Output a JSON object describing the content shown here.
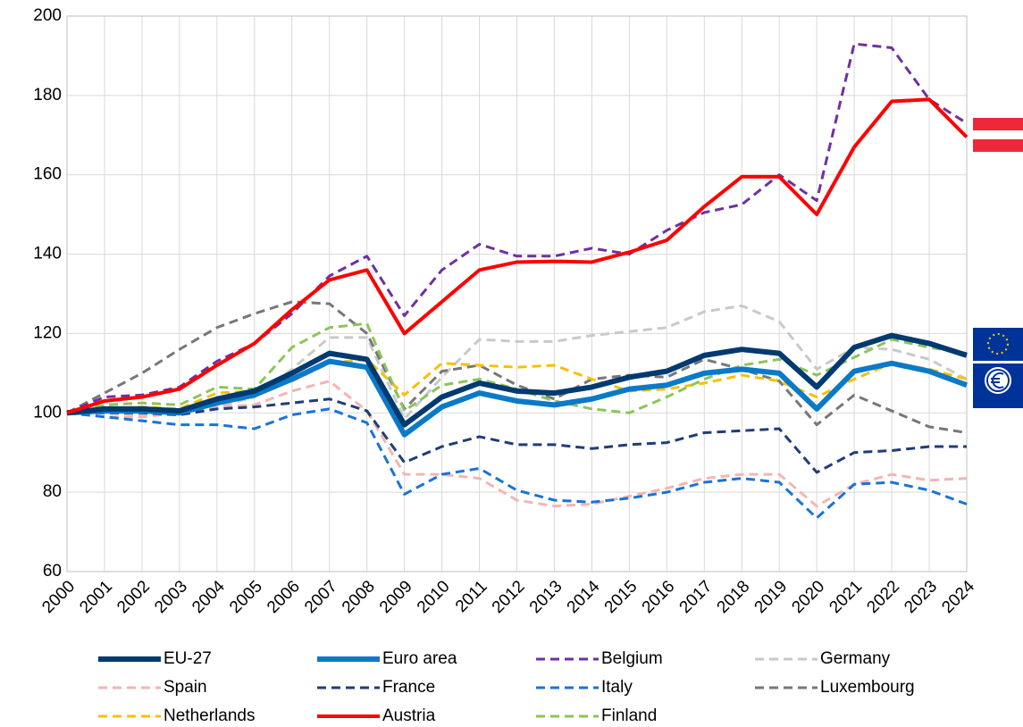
{
  "chart_data": {
    "type": "line",
    "categories": [
      "2000",
      "2001",
      "2002",
      "2003",
      "2004",
      "2005",
      "2006",
      "2007",
      "2008",
      "2009",
      "2010",
      "2011",
      "2012",
      "2013",
      "2014",
      "2015",
      "2016",
      "2017",
      "2018",
      "2019",
      "2020",
      "2021",
      "2022",
      "2023",
      "2024"
    ],
    "ylim": [
      60,
      200
    ],
    "yticks": [
      60,
      80,
      100,
      120,
      140,
      160,
      180,
      200
    ],
    "grid": true,
    "series": [
      {
        "name": "EU-27",
        "color": "#003a70",
        "style": "solid",
        "values": [
          100,
          101,
          101,
          100.5,
          103.5,
          105.5,
          110,
          115,
          113.5,
          97,
          104,
          107.5,
          105.5,
          105,
          106.5,
          109,
          110.5,
          114.5,
          116,
          115,
          106.5,
          116.5,
          119.5,
          117.5,
          114.5
        ]
      },
      {
        "name": "Euro area",
        "color": "#0a7ac8",
        "style": "solid",
        "values": [
          100,
          100.5,
          100.5,
          100,
          102.5,
          104.5,
          108.5,
          113,
          111.5,
          94.5,
          101.5,
          105,
          103,
          102,
          103.5,
          106,
          107,
          110,
          111,
          110,
          101,
          110.5,
          112.5,
          110.5,
          107
        ]
      },
      {
        "name": "Belgium",
        "color": "#7030a0",
        "style": "dashed",
        "values": [
          100,
          104,
          104.5,
          106.5,
          113,
          117.5,
          125,
          134.5,
          139.5,
          124.5,
          136,
          142.5,
          139.5,
          139.5,
          141.5,
          140,
          146,
          150.5,
          152.5,
          160,
          153.5,
          193,
          192,
          179,
          173
        ]
      },
      {
        "name": "Germany",
        "color": "#c9c9c9",
        "style": "dashed",
        "values": [
          100,
          100,
          99.5,
          99.5,
          101.5,
          104,
          111,
          119,
          119,
          98.5,
          109,
          118.5,
          118,
          118,
          119.5,
          120.5,
          121.5,
          125.5,
          127,
          123,
          111,
          116.5,
          116,
          113.5,
          108.5
        ]
      },
      {
        "name": "Spain",
        "color": "#f4b5b0",
        "style": "dashed",
        "values": [
          100,
          99,
          99,
          100,
          101.5,
          102,
          105.5,
          108,
          100.5,
          84.5,
          84.5,
          83.5,
          78,
          76.5,
          77,
          79,
          81,
          83.5,
          84.5,
          84.5,
          76.5,
          82,
          84.5,
          83,
          83.5
        ]
      },
      {
        "name": "France",
        "color": "#1f3d78",
        "style": "dashed",
        "values": [
          100,
          100,
          100,
          99.5,
          101,
          101.5,
          102.5,
          103.5,
          100.5,
          87.5,
          91.5,
          94,
          92,
          92,
          91,
          92,
          92.5,
          95,
          95.5,
          96,
          85,
          90,
          90.5,
          91.5,
          91.5
        ]
      },
      {
        "name": "Italy",
        "color": "#1a73d8",
        "style": "dashed",
        "values": [
          100,
          99,
          98,
          97,
          97,
          96,
          99.5,
          101,
          97.5,
          79.5,
          84.5,
          86,
          80.5,
          78,
          77.5,
          78.5,
          80,
          82.5,
          83.5,
          82.5,
          73.5,
          82,
          82.5,
          80.5,
          77
        ]
      },
      {
        "name": "Luxembourg",
        "color": "#777777",
        "style": "dashed",
        "values": [
          100,
          105,
          110,
          116,
          121.5,
          125,
          128,
          127.5,
          120,
          101,
          110.5,
          112,
          107,
          103.5,
          108.5,
          109.5,
          109,
          113.5,
          111,
          108,
          97,
          104.5,
          100.5,
          96.5,
          95
        ]
      },
      {
        "name": "Netherlands",
        "color": "#f7c000",
        "style": "dashed",
        "values": [
          100,
          101,
          101.5,
          101,
          105,
          105.5,
          108,
          112.5,
          113.5,
          104.5,
          112.5,
          112,
          111.5,
          112,
          108.5,
          105.5,
          106,
          107.5,
          109.5,
          108,
          104,
          108.5,
          112.5,
          111,
          108.5
        ]
      },
      {
        "name": "Austria",
        "color": "#ff0000",
        "style": "solid",
        "values": [
          100,
          103,
          104,
          106,
          112,
          117.5,
          126,
          133.5,
          136,
          120,
          128,
          136,
          138,
          138.2,
          138,
          140.5,
          143.5,
          152,
          159.5,
          159.5,
          150,
          167,
          178.5,
          179,
          169.5
        ]
      },
      {
        "name": "Finland",
        "color": "#8cc45a",
        "style": "dashed",
        "values": [
          100,
          102,
          102.5,
          102,
          106.5,
          106,
          116.5,
          121.5,
          122.5,
          100.5,
          107,
          108.5,
          106,
          103,
          101,
          100,
          104,
          108.5,
          112,
          113.5,
          109.5,
          114,
          118.5,
          116.5,
          115
        ]
      }
    ]
  }
}
